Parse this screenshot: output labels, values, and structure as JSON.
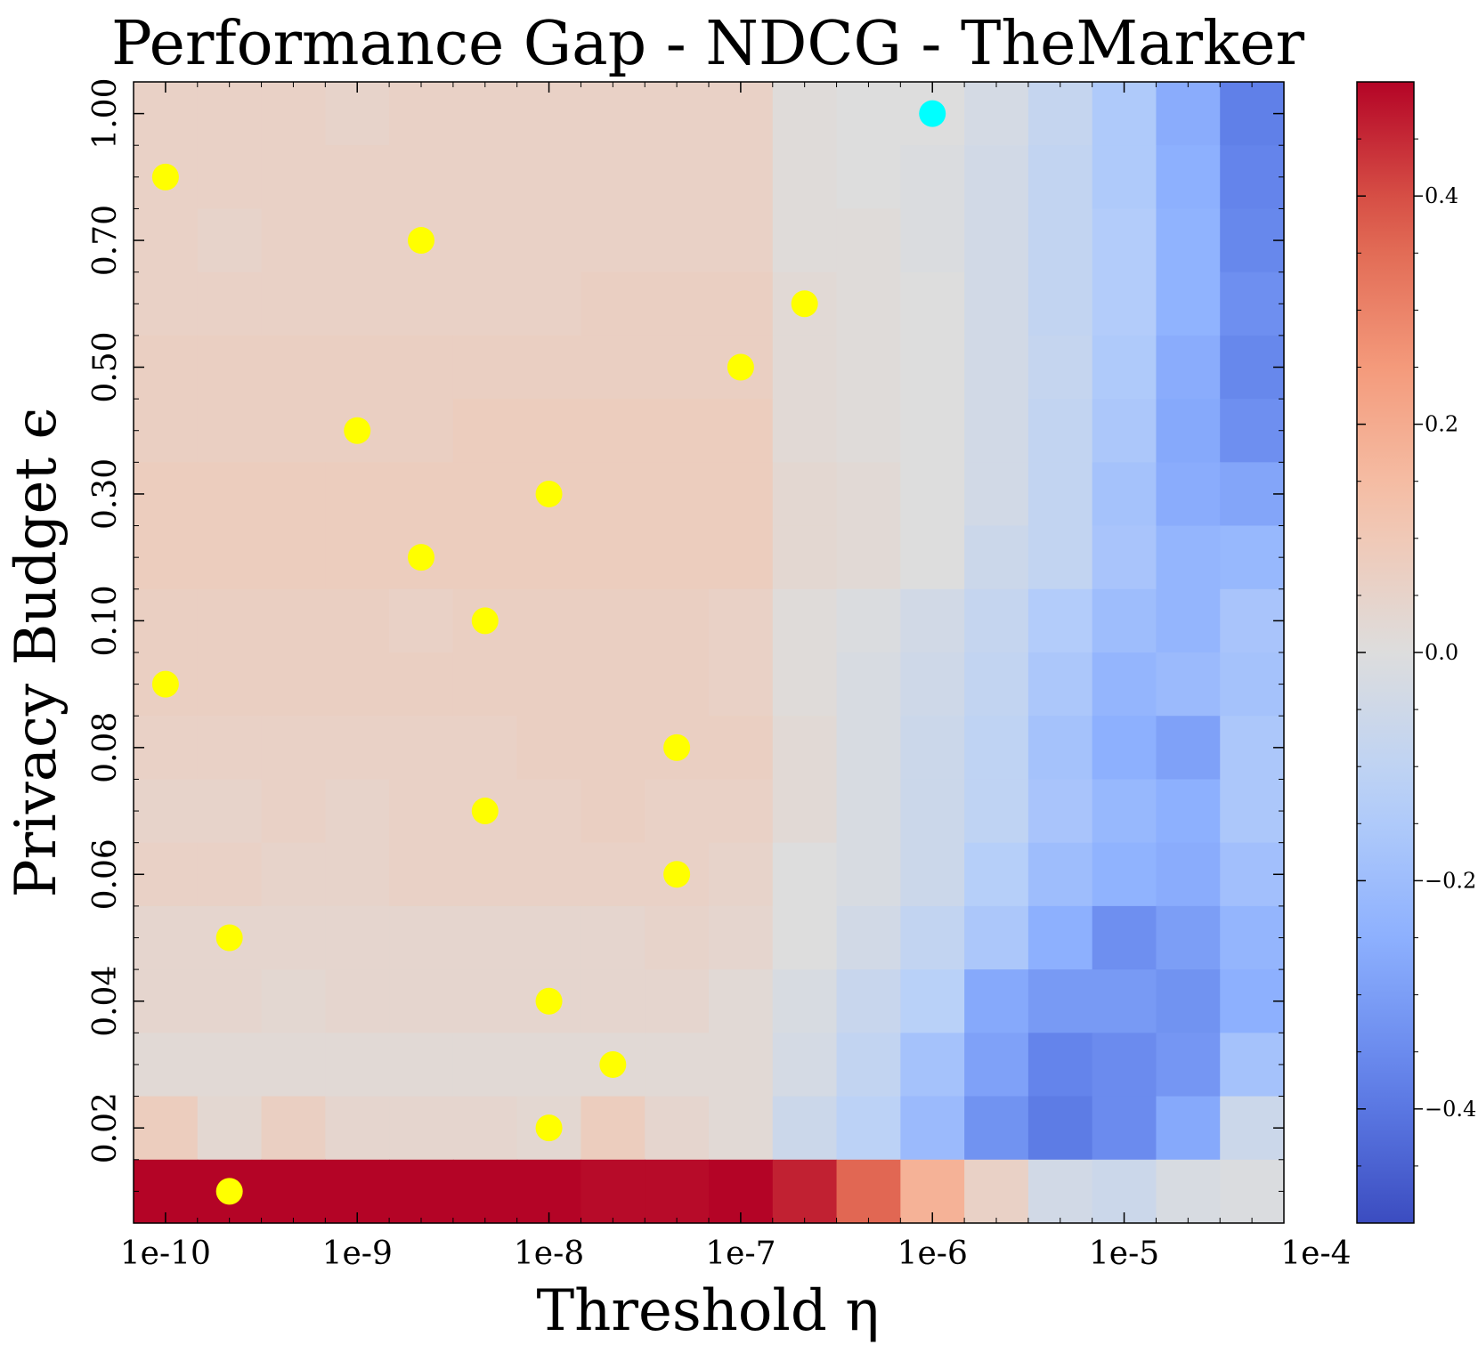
{
  "chart_data": {
    "type": "heatmap",
    "title": "Performance Gap - NDCG - TheMarker",
    "xlabel": "Threshold η",
    "ylabel": "Privacy Budget ϵ",
    "x_tick_labels": [
      "1e-10",
      "1e-9",
      "1e-8",
      "1e-7",
      "1e-6",
      "1e-5",
      "1e-4"
    ],
    "x_tick_columns": [
      0,
      3,
      6,
      9,
      12,
      15,
      18
    ],
    "y_tick_labels": [
      "1.00",
      "0.70",
      "0.50",
      "0.30",
      "0.10",
      "0.08",
      "0.06",
      "0.04",
      "0.02"
    ],
    "y_tick_rows": [
      0,
      2,
      4,
      6,
      8,
      10,
      12,
      14,
      16
    ],
    "n_cols": 18,
    "n_rows": 18,
    "colorbar": {
      "colormap": "coolwarm",
      "vmin": -0.5,
      "vmax": 0.5,
      "tick_values": [
        0.4,
        0.2,
        0.0,
        -0.2,
        -0.4
      ],
      "tick_labels": [
        "0.4",
        "0.2",
        "0.0",
        "−0.2",
        "−0.4"
      ]
    },
    "values": [
      [
        0.06,
        0.06,
        0.06,
        0.05,
        0.06,
        0.06,
        0.06,
        0.06,
        0.06,
        0.06,
        0.01,
        0.0,
        0.0,
        -0.03,
        -0.08,
        -0.15,
        -0.26,
        -0.38
      ],
      [
        0.06,
        0.06,
        0.06,
        0.06,
        0.06,
        0.06,
        0.06,
        0.06,
        0.06,
        0.06,
        0.01,
        0.0,
        -0.01,
        -0.04,
        -0.09,
        -0.15,
        -0.25,
        -0.37
      ],
      [
        0.06,
        0.05,
        0.06,
        0.06,
        0.06,
        0.06,
        0.06,
        0.06,
        0.06,
        0.06,
        0.01,
        0.01,
        -0.01,
        -0.04,
        -0.09,
        -0.14,
        -0.24,
        -0.36
      ],
      [
        0.06,
        0.06,
        0.06,
        0.06,
        0.06,
        0.06,
        0.06,
        0.07,
        0.07,
        0.07,
        0.02,
        0.01,
        0.0,
        -0.04,
        -0.09,
        -0.14,
        -0.24,
        -0.34
      ],
      [
        0.07,
        0.07,
        0.07,
        0.07,
        0.07,
        0.07,
        0.07,
        0.07,
        0.07,
        0.07,
        0.02,
        0.01,
        0.0,
        -0.04,
        -0.08,
        -0.15,
        -0.26,
        -0.36
      ],
      [
        0.07,
        0.07,
        0.07,
        0.07,
        0.07,
        0.08,
        0.08,
        0.08,
        0.08,
        0.08,
        0.02,
        0.01,
        0.0,
        -0.04,
        -0.09,
        -0.16,
        -0.27,
        -0.34
      ],
      [
        0.08,
        0.08,
        0.08,
        0.08,
        0.08,
        0.08,
        0.08,
        0.08,
        0.08,
        0.08,
        0.03,
        0.02,
        0.0,
        -0.04,
        -0.09,
        -0.18,
        -0.26,
        -0.28
      ],
      [
        0.08,
        0.08,
        0.08,
        0.08,
        0.08,
        0.08,
        0.08,
        0.08,
        0.08,
        0.08,
        0.03,
        0.02,
        0.0,
        -0.06,
        -0.09,
        -0.17,
        -0.23,
        -0.22
      ],
      [
        0.07,
        0.07,
        0.07,
        0.07,
        0.06,
        0.07,
        0.07,
        0.07,
        0.07,
        0.06,
        0.01,
        -0.01,
        -0.04,
        -0.08,
        -0.14,
        -0.2,
        -0.23,
        -0.17
      ],
      [
        0.07,
        0.07,
        0.07,
        0.07,
        0.07,
        0.07,
        0.07,
        0.07,
        0.07,
        0.06,
        0.01,
        -0.02,
        -0.05,
        -0.09,
        -0.16,
        -0.23,
        -0.21,
        -0.18
      ],
      [
        0.06,
        0.06,
        0.06,
        0.06,
        0.06,
        0.06,
        0.07,
        0.07,
        0.07,
        0.07,
        0.02,
        -0.02,
        -0.06,
        -0.1,
        -0.18,
        -0.25,
        -0.29,
        -0.16
      ],
      [
        0.05,
        0.05,
        0.06,
        0.05,
        0.06,
        0.06,
        0.06,
        0.07,
        0.06,
        0.06,
        0.02,
        -0.02,
        -0.06,
        -0.1,
        -0.17,
        -0.22,
        -0.25,
        -0.16
      ],
      [
        0.06,
        0.06,
        0.05,
        0.05,
        0.06,
        0.06,
        0.06,
        0.06,
        0.06,
        0.05,
        0.0,
        -0.02,
        -0.06,
        -0.13,
        -0.2,
        -0.24,
        -0.26,
        -0.19
      ],
      [
        0.04,
        0.04,
        0.04,
        0.04,
        0.04,
        0.04,
        0.04,
        0.04,
        0.05,
        0.04,
        0.0,
        -0.04,
        -0.09,
        -0.16,
        -0.25,
        -0.34,
        -0.3,
        -0.23
      ],
      [
        0.04,
        0.04,
        0.03,
        0.04,
        0.04,
        0.04,
        0.04,
        0.04,
        0.04,
        0.02,
        -0.02,
        -0.07,
        -0.12,
        -0.27,
        -0.31,
        -0.31,
        -0.33,
        -0.25
      ],
      [
        0.02,
        0.02,
        0.02,
        0.02,
        0.02,
        0.02,
        0.02,
        0.02,
        0.02,
        0.02,
        -0.03,
        -0.09,
        -0.18,
        -0.29,
        -0.37,
        -0.35,
        -0.32,
        -0.18
      ],
      [
        0.08,
        0.03,
        0.07,
        0.04,
        0.04,
        0.04,
        0.03,
        0.08,
        0.04,
        0.02,
        -0.06,
        -0.11,
        -0.21,
        -0.33,
        -0.39,
        -0.35,
        -0.27,
        -0.06
      ],
      [
        0.5,
        0.5,
        0.5,
        0.5,
        0.5,
        0.5,
        0.5,
        0.49,
        0.49,
        0.5,
        0.46,
        0.36,
        0.18,
        0.06,
        -0.04,
        -0.06,
        -0.02,
        -0.01
      ]
    ],
    "points": [
      {
        "col": 0,
        "row": 1,
        "color": "#ffff00"
      },
      {
        "col": 4,
        "row": 2,
        "color": "#ffff00"
      },
      {
        "col": 10,
        "row": 3,
        "color": "#ffff00"
      },
      {
        "col": 9,
        "row": 4,
        "color": "#ffff00"
      },
      {
        "col": 3,
        "row": 5,
        "color": "#ffff00"
      },
      {
        "col": 6,
        "row": 6,
        "color": "#ffff00"
      },
      {
        "col": 4,
        "row": 7,
        "color": "#ffff00"
      },
      {
        "col": 5,
        "row": 8,
        "color": "#ffff00"
      },
      {
        "col": 0,
        "row": 9,
        "color": "#ffff00"
      },
      {
        "col": 8,
        "row": 10,
        "color": "#ffff00"
      },
      {
        "col": 5,
        "row": 11,
        "color": "#ffff00"
      },
      {
        "col": 8,
        "row": 12,
        "color": "#ffff00"
      },
      {
        "col": 1,
        "row": 13,
        "color": "#ffff00"
      },
      {
        "col": 6,
        "row": 14,
        "color": "#ffff00"
      },
      {
        "col": 7,
        "row": 15,
        "color": "#ffff00"
      },
      {
        "col": 6,
        "row": 16,
        "color": "#ffff00"
      },
      {
        "col": 1,
        "row": 17,
        "color": "#ffff00"
      },
      {
        "col": 12,
        "row": 0,
        "color": "#00ffff"
      }
    ]
  }
}
